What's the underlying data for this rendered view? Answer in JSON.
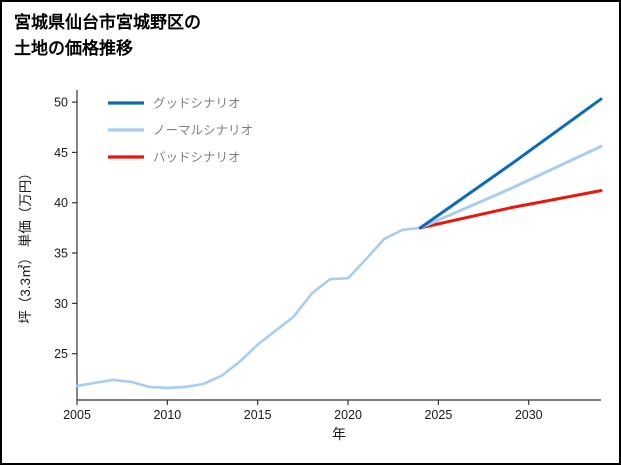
{
  "title": {
    "line1": "宮城県仙台市宮城野区の",
    "line2": "土地の価格推移"
  },
  "chart_data": {
    "type": "line",
    "title": "宮城県仙台市宮城野区の土地の価格推移",
    "xlabel": "年",
    "ylabel": "坪（3.3㎡） 単価（万円）",
    "xlim": [
      2005,
      2034
    ],
    "ylim": [
      20.4,
      51.2
    ],
    "xticks": [
      2005,
      2010,
      2015,
      2020,
      2025,
      2030
    ],
    "yticks": [
      25,
      30,
      35,
      40,
      45,
      50
    ],
    "grid": false,
    "axis_color": "#333333",
    "tick_label_color": "#1a1a1a",
    "legend": {
      "position": "upper-left",
      "text_color": "#7f7f7f"
    },
    "history": {
      "color": "#a9cdf1",
      "x": [
        2005,
        2006,
        2007,
        2008,
        2009,
        2010,
        2011,
        2012,
        2013,
        2014,
        2015,
        2016,
        2017,
        2018,
        2019,
        2020,
        2021,
        2022,
        2023,
        2024
      ],
      "y": [
        21.8,
        22.1,
        22.4,
        22.2,
        21.7,
        21.6,
        21.7,
        22.0,
        22.8,
        24.2,
        25.9,
        27.3,
        28.7,
        31.0,
        32.4,
        32.5,
        34.4,
        36.4,
        37.3,
        37.5
      ]
    },
    "series": [
      {
        "name": "グッドシナリオ",
        "color": "#0e6cb5",
        "x": [
          2024,
          2029,
          2034
        ],
        "y": [
          37.5,
          43.8,
          50.3
        ]
      },
      {
        "name": "ノーマルシナリオ",
        "color": "#a9cdf1",
        "x": [
          2024,
          2029,
          2034
        ],
        "y": [
          37.5,
          41.4,
          45.6
        ]
      },
      {
        "name": "バッドシナリオ",
        "color": "#e8160c",
        "x": [
          2024,
          2029,
          2034
        ],
        "y": [
          37.5,
          39.5,
          41.2
        ]
      }
    ]
  }
}
